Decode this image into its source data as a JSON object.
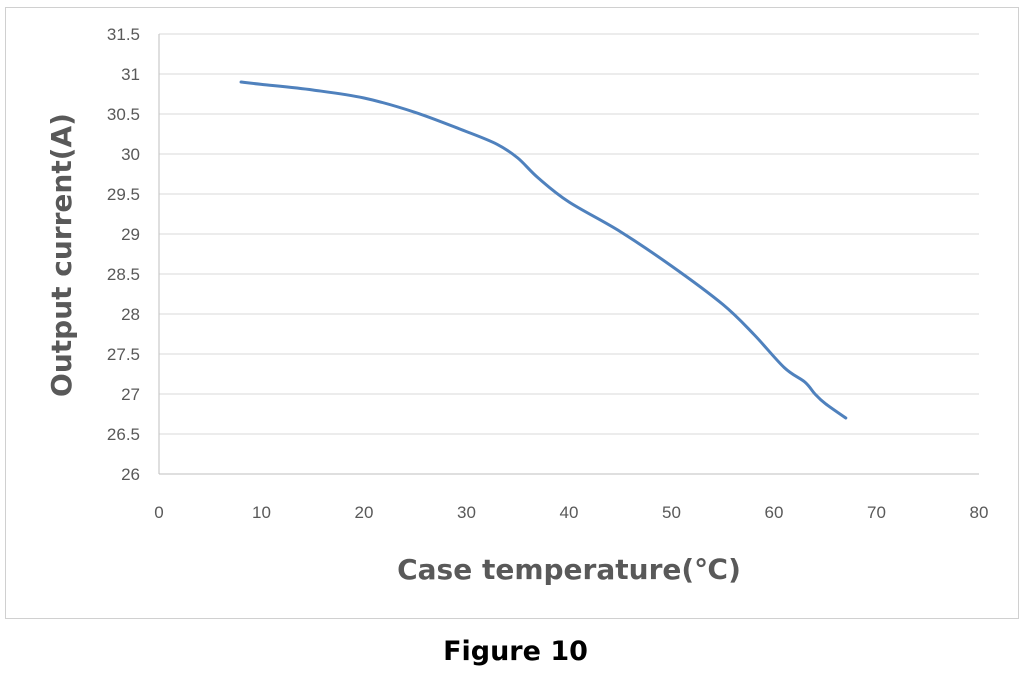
{
  "chart_data": {
    "type": "line",
    "title": "",
    "xlabel": "Case temperature(℃)",
    "ylabel": "Output current(A)",
    "xlim": [
      0,
      80
    ],
    "ylim": [
      26,
      31.5
    ],
    "xticks": [
      "0",
      "10",
      "20",
      "30",
      "40",
      "50",
      "60",
      "70",
      "80"
    ],
    "yticks": [
      "26",
      "26.5",
      "27",
      "27.5",
      "28",
      "28.5",
      "29",
      "29.5",
      "30",
      "30.5",
      "31",
      "31.5"
    ],
    "grid": "horizontal",
    "legend": "none",
    "series": [
      {
        "color": "#4f81bd",
        "x": [
          8,
          10,
          15,
          20,
          25,
          30,
          33,
          35,
          37,
          40,
          45,
          50,
          55,
          58,
          61,
          63,
          64,
          65,
          67
        ],
        "y": [
          30.9,
          30.87,
          30.8,
          30.7,
          30.52,
          30.28,
          30.12,
          29.95,
          29.7,
          29.4,
          29.03,
          28.6,
          28.12,
          27.75,
          27.33,
          27.15,
          27.0,
          26.88,
          26.7
        ]
      }
    ]
  },
  "caption": "Figure 10"
}
